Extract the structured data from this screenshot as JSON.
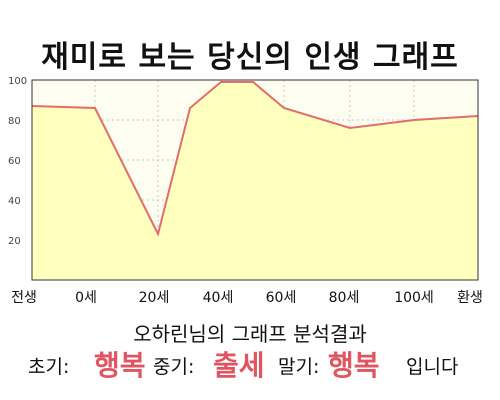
{
  "title": "재미로 보는 당신의 인생 그래프",
  "chart_data": {
    "type": "area",
    "x_labels": [
      "전생",
      "0세",
      "20세",
      "40세",
      "60세",
      "80세",
      "100세",
      "환생"
    ],
    "y_ticks": [
      20,
      40,
      60,
      80,
      100
    ],
    "ylim": [
      0,
      100
    ],
    "grid": true,
    "series": [
      {
        "points": [
          {
            "x": "전생",
            "y": 87
          },
          {
            "x": "0세",
            "y": 86
          },
          {
            "x": "20세",
            "y": 23
          },
          {
            "x": "30세",
            "y": 86
          },
          {
            "x": "40세",
            "y": 99
          },
          {
            "x": "50세",
            "y": 99
          },
          {
            "x": "60세",
            "y": 86
          },
          {
            "x": "80세",
            "y": 76
          },
          {
            "x": "100세",
            "y": 80
          },
          {
            "x": "환생",
            "y": 82
          }
        ]
      }
    ],
    "colors": {
      "line": "#e36c6c",
      "fill": "#ffffbe",
      "plot_bg": "#fdfdf0",
      "grid": "#c8c8c8"
    }
  },
  "result": {
    "title": "오하린님의 그래프 분석결과",
    "early_label": "초기:",
    "early_value": "행복",
    "mid_label": "중기:",
    "mid_value": "출세",
    "late_label": "말기:",
    "late_value": "행복",
    "ending": "입니다",
    "highlight_color": "#e05560"
  }
}
